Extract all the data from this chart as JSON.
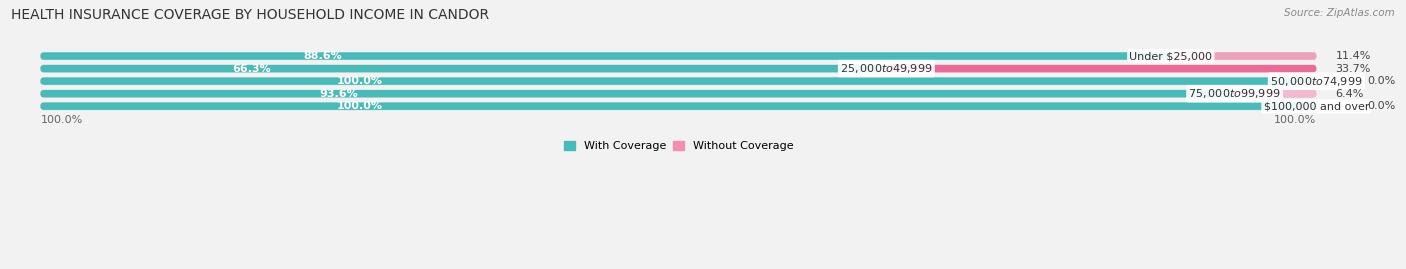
{
  "title": "HEALTH INSURANCE COVERAGE BY HOUSEHOLD INCOME IN CANDOR",
  "source": "Source: ZipAtlas.com",
  "categories": [
    "Under $25,000",
    "$25,000 to $49,999",
    "$50,000 to $74,999",
    "$75,000 to $99,999",
    "$100,000 and over"
  ],
  "with_coverage": [
    88.6,
    66.3,
    100.0,
    93.6,
    100.0
  ],
  "without_coverage": [
    11.4,
    33.7,
    0.0,
    6.4,
    0.0
  ],
  "color_with": "#45BCBA",
  "color_without_0": "#F48DB0",
  "color_without_1": "#EE6A96",
  "color_without_by_row": [
    "#F0A0BB",
    "#EE6A96",
    "#F5B8CE",
    "#F5B8CE",
    "#F5B8CE"
  ],
  "bg_color": "#F2F2F2",
  "row_bg": "#E8E8E8",
  "title_fontsize": 10,
  "label_fontsize": 8,
  "tick_fontsize": 8,
  "source_fontsize": 7.5,
  "legend_fontsize": 8
}
